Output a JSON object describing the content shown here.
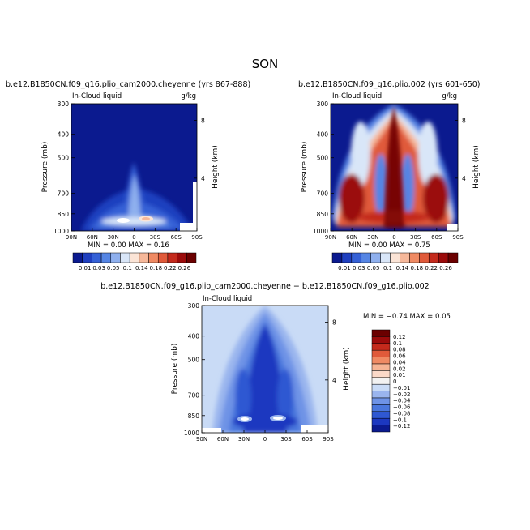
{
  "figure": {
    "title": "SON"
  },
  "colors": {
    "level_colors_abs": [
      "#0b1a8f",
      "#1f3fbf",
      "#3460d6",
      "#5585e4",
      "#8fb0ee",
      "#d9e6f8",
      "#fbe4d6",
      "#f6b89a",
      "#ef8a63",
      "#e05a3a",
      "#c42a1c",
      "#9b0b0b",
      "#6b0000"
    ],
    "level_colors_diff": [
      "#0b1a8f",
      "#1c38c0",
      "#2f58d2",
      "#4a77dd",
      "#6e93e6",
      "#9ab5ee",
      "#c9dbf6",
      "#f2f2f2",
      "#fbd9c8",
      "#f6b494",
      "#ef8a63",
      "#e05a3a",
      "#c42a1c",
      "#9b0b0b",
      "#6b0000"
    ]
  },
  "chart_data": [
    {
      "type": "heatmap",
      "panel": "top-left",
      "title": "b.e12.B1850CN.f09_g16.plio_cam2000.cheyenne (yrs 867-888)",
      "left_string": "In-Cloud liquid",
      "right_string": "g/kg",
      "xlabel": "",
      "ylabel": "Pressure (mb)",
      "y2label": "Height (km)",
      "x_ticks": [
        "90N",
        "60N",
        "30N",
        "0",
        "30S",
        "60S",
        "90S"
      ],
      "y_ticks": [
        "300",
        "400",
        "500",
        "700",
        "850",
        "1000"
      ],
      "y2_ticks": [
        "8",
        "4"
      ],
      "xlim": [
        90,
        -90
      ],
      "ylim": [
        1000,
        300
      ],
      "stats": "MIN =    0.00   MAX =   0.16",
      "min": 0.0,
      "max": 0.16,
      "colorbar_labels": [
        "0.01",
        "0.03",
        "0.05",
        "0.1",
        "0.14",
        "0.18",
        "0.22",
        "0.26"
      ],
      "features": [
        {
          "lat": 8,
          "p": 870,
          "value": 0.16
        },
        {
          "lat": -18,
          "p": 870,
          "value": 0.15
        },
        {
          "lat": 2,
          "p": 650,
          "value": 0.06
        }
      ]
    },
    {
      "type": "heatmap",
      "panel": "top-right",
      "title": "b.e12.B1850CN.f09_g16.plio.002 (yrs 601-650)",
      "left_string": "In-Cloud liquid",
      "right_string": "g/kg",
      "xlabel": "",
      "ylabel": "Pressure (mb)",
      "y2label": "Height (km)",
      "x_ticks": [
        "90N",
        "60N",
        "30N",
        "0",
        "30S",
        "60S",
        "90S"
      ],
      "y_ticks": [
        "300",
        "400",
        "500",
        "700",
        "850",
        "1000"
      ],
      "y2_ticks": [
        "8",
        "4"
      ],
      "xlim": [
        90,
        -90
      ],
      "ylim": [
        1000,
        300
      ],
      "stats": "MIN =    0.00   MAX =   0.75",
      "min": 0.0,
      "max": 0.75,
      "colorbar_labels": [
        "0.01",
        "0.03",
        "0.05",
        "0.1",
        "0.14",
        "0.18",
        "0.22",
        "0.26"
      ],
      "features": [
        {
          "lat": 0,
          "p": 400,
          "value": 0.75
        },
        {
          "lat": 50,
          "p": 750,
          "value": 0.5
        },
        {
          "lat": -50,
          "p": 750,
          "value": 0.5
        }
      ]
    },
    {
      "type": "heatmap",
      "panel": "bottom",
      "title": "b.e12.B1850CN.f09_g16.plio_cam2000.cheyenne − b.e12.B1850CN.f09_g16.plio.002",
      "left_string": "In-Cloud liquid",
      "right_string": "",
      "xlabel": "",
      "ylabel": "Pressure (mb)",
      "y2label": "Height (km)",
      "x_ticks": [
        "90N",
        "60N",
        "30N",
        "0",
        "30S",
        "60S",
        "90S"
      ],
      "y_ticks": [
        "300",
        "400",
        "500",
        "700",
        "850",
        "1000"
      ],
      "y2_ticks": [
        "8",
        "4"
      ],
      "xlim": [
        90,
        -90
      ],
      "ylim": [
        1000,
        300
      ],
      "stats": "MIN =  −0.74   MAX =   0.05",
      "min": -0.74,
      "max": 0.05,
      "colorbar_labels": [
        "0.12",
        "0.1",
        "0.08",
        "0.06",
        "0.04",
        "0.02",
        "0.01",
        "0",
        "−0.01",
        "−0.02",
        "−0.04",
        "−0.06",
        "−0.08",
        "−0.1",
        "−0.12"
      ],
      "features": [
        {
          "lat": 20,
          "p": 860,
          "value": -0.74
        },
        {
          "lat": -18,
          "p": 860,
          "value": -0.7
        },
        {
          "lat": 0,
          "p": 500,
          "value": -0.4
        }
      ]
    }
  ]
}
